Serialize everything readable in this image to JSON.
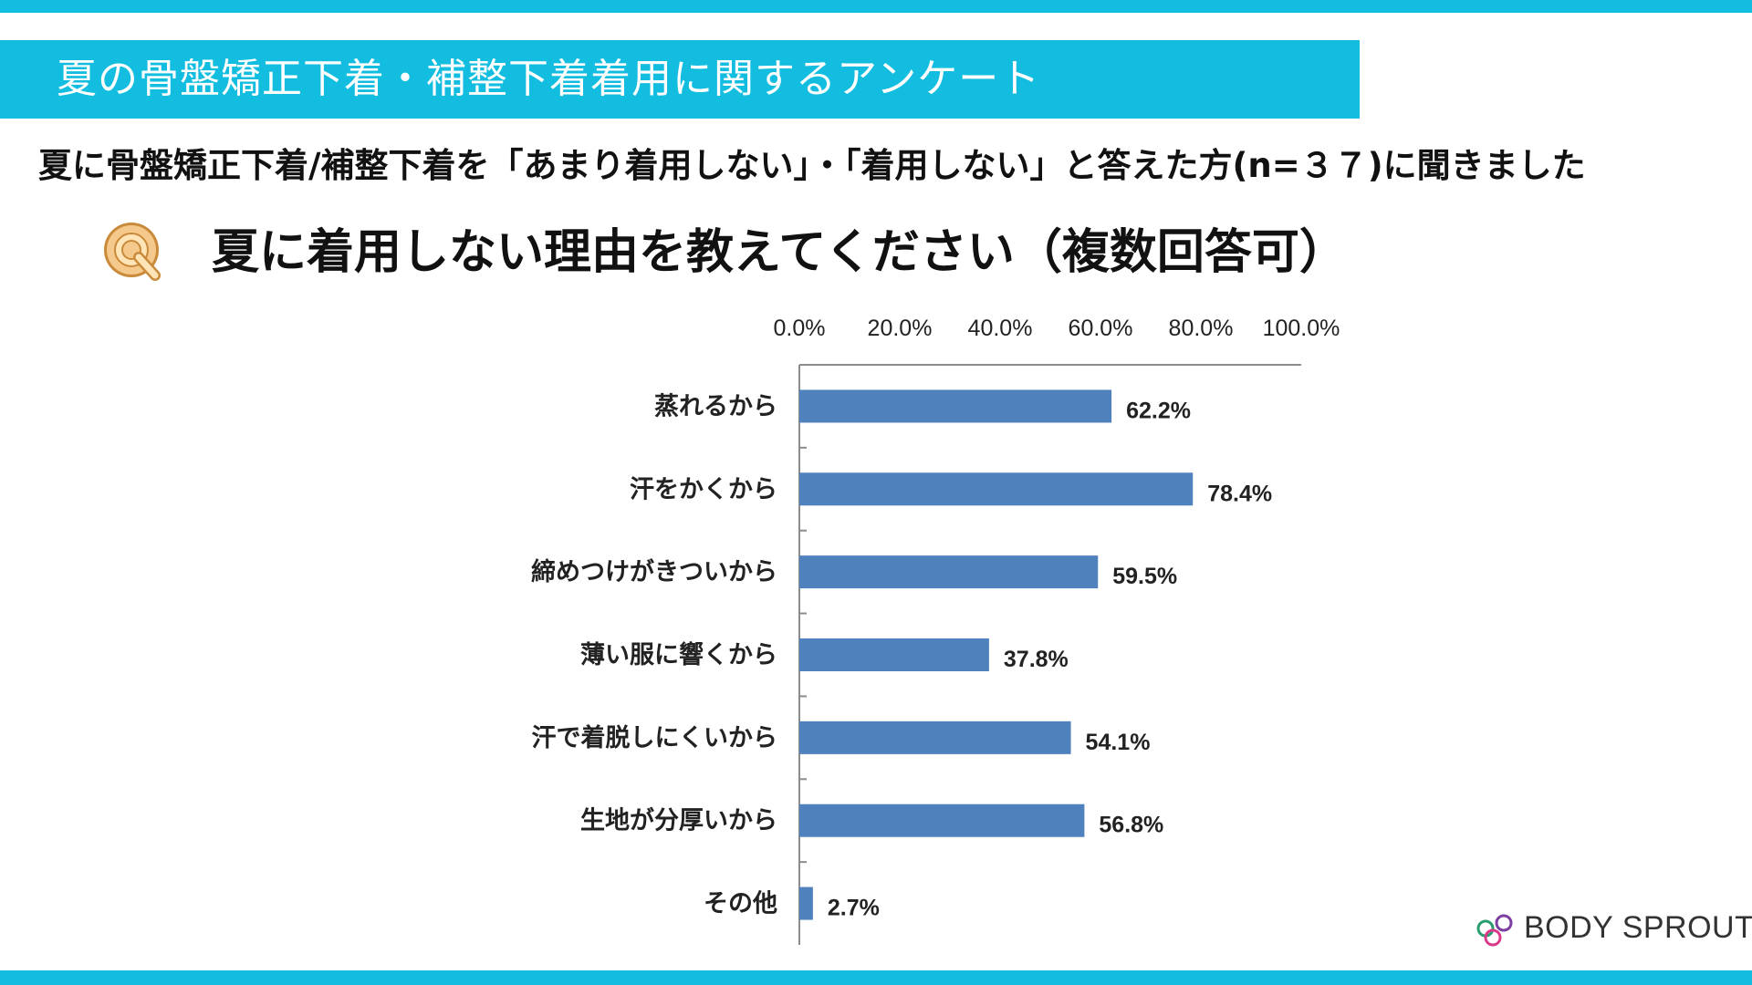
{
  "header": {
    "banner_title": "夏の骨盤矯正下着・補整下着着用に関するアンケート",
    "subtitle": "夏に骨盤矯正下着/補整下着を「あまり着用しない」・「着用しない」と答えた方(n=３７)に聞きました",
    "question_icon_letter": "Q",
    "question": "夏に着用しない理由を教えてください（複数回答可）"
  },
  "colors": {
    "accent": "#12bddf",
    "bar": "#4f81bd",
    "icon_fill": "#f5c98c",
    "icon_outline": "#c98a3a",
    "logo_ring_green": "#2a9d6f",
    "logo_ring_purple": "#7a3fa0",
    "logo_ring_pink": "#d93a8c"
  },
  "chart_data": {
    "type": "bar",
    "orientation": "horizontal",
    "categories": [
      "蒸れるから",
      "汗をかくから",
      "締めつけがきついから",
      "薄い服に響くから",
      "汗で着脱しにくいから",
      "生地が分厚いから",
      "その他"
    ],
    "values": [
      62.2,
      78.4,
      59.5,
      37.8,
      54.1,
      56.8,
      2.7
    ],
    "value_labels": [
      "62.2%",
      "78.4%",
      "59.5%",
      "37.8%",
      "54.1%",
      "56.8%",
      "2.7%"
    ],
    "xlim": [
      0,
      100
    ],
    "x_ticks": [
      0,
      20,
      40,
      60,
      80,
      100
    ],
    "x_tick_labels": [
      "0.0%",
      "20.0%",
      "40.0%",
      "60.0%",
      "80.0%",
      "100.0%"
    ],
    "x_axis_position": "top",
    "grid": false,
    "legend": "none"
  },
  "logo": {
    "text": "BODY SPROUT",
    "icon": "interlocking-rings-logo-icon"
  }
}
